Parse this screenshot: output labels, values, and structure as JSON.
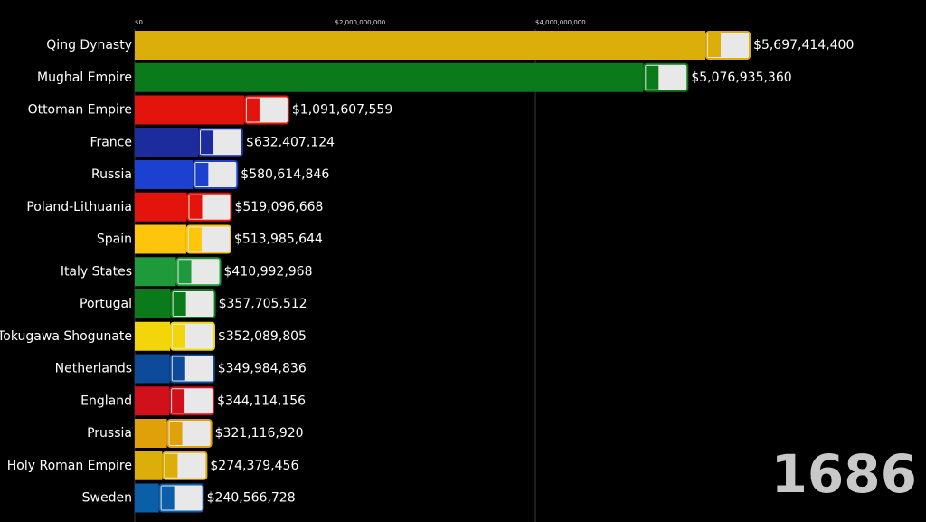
{
  "chart_data": {
    "type": "barh",
    "categories": [
      "Qing Dynasty",
      "Mughal Empire",
      "Ottoman Empire",
      "France",
      "Russia",
      "Poland-Lithuania",
      "Spain",
      "Italy States",
      "Portugal",
      "Tokugawa Shogunate",
      "Netherlands",
      "England",
      "Prussia",
      "Holy Roman Empire",
      "Sweden"
    ],
    "values": [
      5697414400,
      5076935360,
      1091607559,
      632407124,
      580614846,
      519096668,
      513985644,
      410992968,
      357705512,
      352089805,
      349984836,
      344114156,
      321116920,
      274379456,
      240566728
    ],
    "value_labels": [
      "$5,697,414,400",
      "$5,076,935,360",
      "$1,091,607,559",
      "$632,407,124",
      "$580,614,846",
      "$519,096,668",
      "$513,985,644",
      "$410,992,968",
      "$357,705,512",
      "$352,089,805",
      "$349,984,836",
      "$344,114,156",
      "$321,116,920",
      "$274,379,456",
      "$240,566,728"
    ],
    "colors": [
      "#dcae0a",
      "#0b7a1a",
      "#e3140c",
      "#1c2c9c",
      "#1c40d0",
      "#e3140c",
      "#ffc40c",
      "#1e9a3a",
      "#0b7a1a",
      "#f2d60a",
      "#0d4a9a",
      "#d0101a",
      "#e0a00a",
      "#dcae0a",
      "#0b5ea8"
    ],
    "xlim": [
      0,
      7900000000
    ],
    "xticks": [
      {
        "value": 0,
        "label": "$0"
      },
      {
        "value": 2000000000,
        "label": "$2,000,000,000"
      },
      {
        "value": 4000000000,
        "label": "$4,000,000,000"
      }
    ],
    "grid": true,
    "annotation": "1686"
  }
}
